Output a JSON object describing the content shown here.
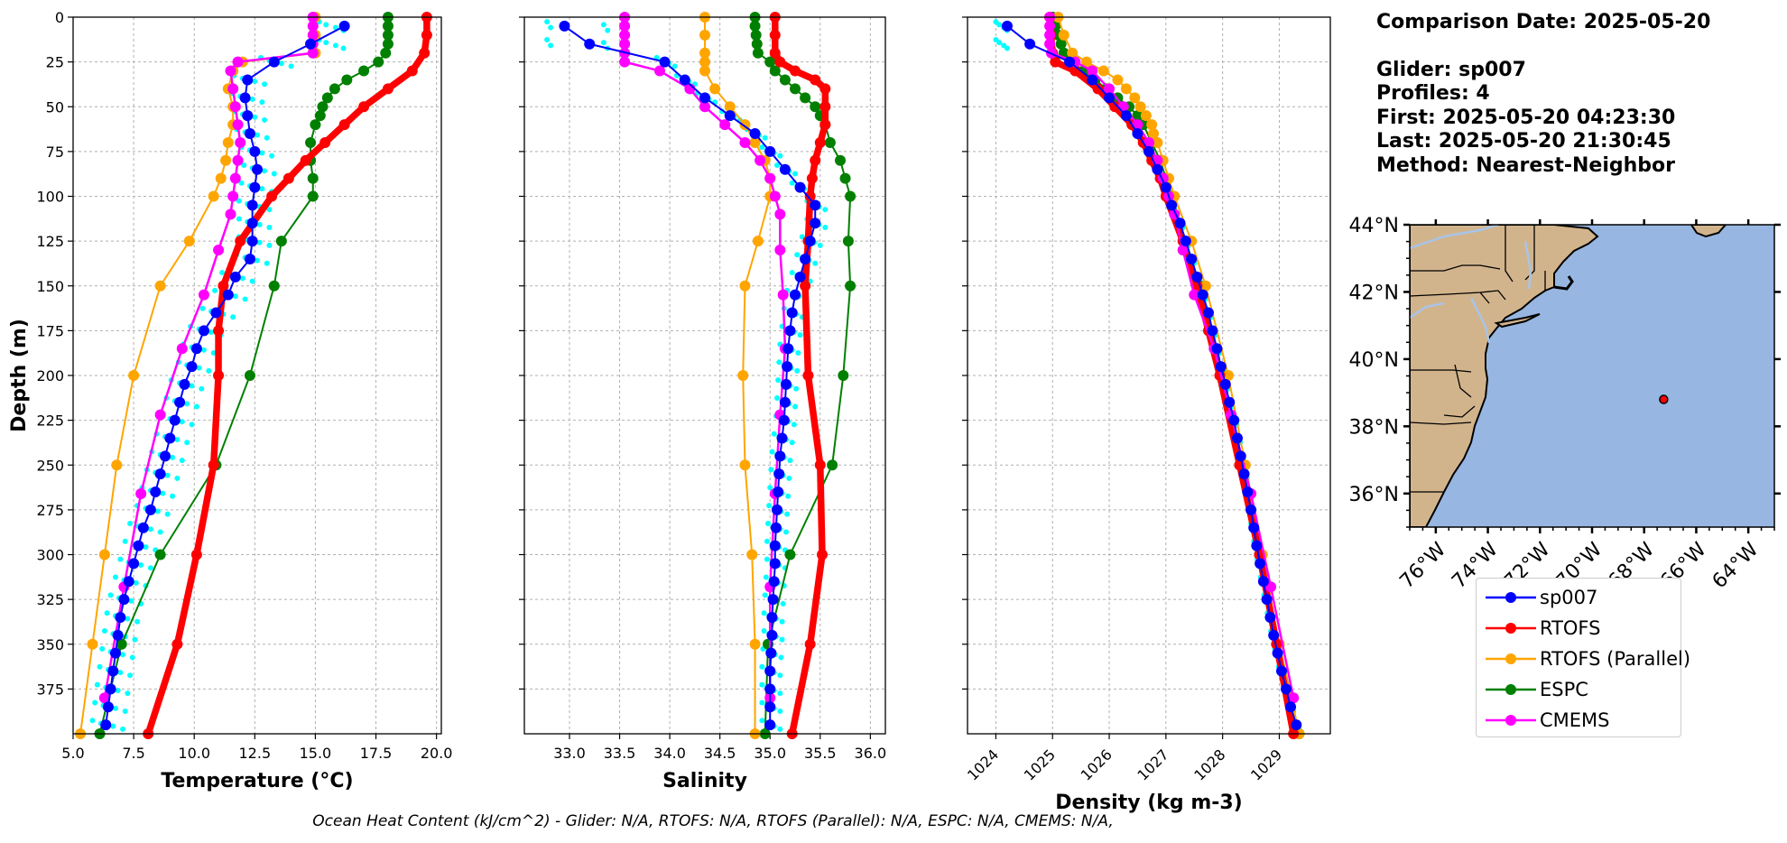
{
  "info": {
    "comparison_date": "Comparison Date: 2025-05-20",
    "glider": "Glider: sp007",
    "profiles": "Profiles: 4",
    "first": "First: 2025-05-20 04:23:30",
    "last": "Last: 2025-05-20 21:30:45",
    "method": "Method: Nearest-Neighbor"
  },
  "footer": "Ocean Heat Content (kJ/cm^2) - Glider: N/A,  RTOFS: N/A,  RTOFS (Parallel): N/A,  ESPC: N/A,  CMEMS: N/A,",
  "colors": {
    "sp007": "#0000ff",
    "RTOFS": "#ff0000",
    "RTOFS (Parallel)": "#ffa500",
    "ESPC": "#008000",
    "CMEMS": "#ff00ff",
    "raw": "#00ffff",
    "land": "#d2b48c",
    "ocean": "#97b6e1",
    "rivers": "#a8c4e8"
  },
  "legend": [
    "sp007",
    "RTOFS",
    "RTOFS (Parallel)",
    "ESPC",
    "CMEMS"
  ],
  "chart_data": [
    {
      "type": "line",
      "xlabel": "Temperature (°C)",
      "ylabel": "Depth (m)",
      "xlim": [
        5.0,
        20.2
      ],
      "ylim": [
        400,
        0
      ],
      "xticks": [
        "5.0",
        "7.5",
        "10.0",
        "12.5",
        "15.0",
        "17.5",
        "20.0"
      ],
      "yticks": [
        "0",
        "25",
        "50",
        "75",
        "100",
        "125",
        "150",
        "175",
        "200",
        "225",
        "250",
        "275",
        "300",
        "325",
        "350",
        "375"
      ],
      "grid": true,
      "series": [
        {
          "name": "sp007",
          "depth": [
            5,
            15,
            25,
            35,
            45,
            55,
            65,
            75,
            85,
            95,
            105,
            115,
            125,
            135,
            145,
            155,
            165,
            175,
            185,
            195,
            205,
            215,
            225,
            235,
            245,
            255,
            265,
            275,
            285,
            295,
            305,
            315,
            325,
            335,
            345,
            355,
            365,
            375,
            385,
            395
          ],
          "values": [
            16.2,
            14.8,
            13.3,
            12.2,
            12.1,
            12.2,
            12.3,
            12.5,
            12.6,
            12.5,
            12.4,
            12.4,
            12.4,
            12.3,
            11.7,
            11.4,
            10.9,
            10.4,
            10.1,
            9.9,
            9.6,
            9.4,
            9.2,
            9.0,
            8.8,
            8.6,
            8.4,
            8.2,
            7.9,
            7.7,
            7.5,
            7.3,
            7.1,
            6.95,
            6.85,
            6.75,
            6.65,
            6.55,
            6.45,
            6.35
          ]
        },
        {
          "name": "RTOFS",
          "depth": [
            0,
            10,
            20,
            30,
            40,
            50,
            60,
            70,
            80,
            90,
            100,
            125,
            150,
            175,
            200,
            250,
            300,
            350,
            400
          ],
          "values": [
            19.6,
            19.6,
            19.5,
            19.0,
            18.0,
            17.0,
            16.2,
            15.4,
            14.6,
            13.9,
            13.2,
            11.9,
            11.2,
            11.0,
            11.0,
            10.8,
            10.1,
            9.3,
            8.1
          ]
        },
        {
          "name": "RTOFS (Parallel)",
          "depth": [
            0,
            10,
            20,
            25,
            30,
            40,
            50,
            60,
            70,
            80,
            90,
            100,
            125,
            150,
            200,
            250,
            300,
            350,
            400
          ],
          "values": [
            15.0,
            15.0,
            15.0,
            12.0,
            11.6,
            11.4,
            11.6,
            11.6,
            11.4,
            11.3,
            11.1,
            10.8,
            9.8,
            8.6,
            7.5,
            6.8,
            6.3,
            5.8,
            5.3
          ]
        },
        {
          "name": "ESPC",
          "depth": [
            0,
            5,
            10,
            15,
            20,
            25,
            30,
            35,
            40,
            45,
            50,
            55,
            60,
            70,
            80,
            90,
            100,
            125,
            150,
            200,
            250,
            300,
            350,
            400
          ],
          "values": [
            18.0,
            18.0,
            18.0,
            18.0,
            17.9,
            17.6,
            17.0,
            16.3,
            15.8,
            15.5,
            15.3,
            15.2,
            15.0,
            14.8,
            14.8,
            14.9,
            14.9,
            13.6,
            13.3,
            12.3,
            10.9,
            8.6,
            7.0,
            6.1
          ]
        },
        {
          "name": "CMEMS",
          "depth": [
            0,
            5,
            10,
            15,
            20,
            25,
            30,
            40,
            50,
            60,
            70,
            80,
            90,
            100,
            110,
            130,
            155,
            185,
            222,
            266,
            318,
            380
          ],
          "values": [
            14.9,
            14.9,
            14.9,
            14.9,
            14.9,
            11.8,
            11.5,
            11.6,
            11.7,
            11.8,
            11.9,
            11.8,
            11.7,
            11.6,
            11.5,
            11.0,
            10.4,
            9.5,
            8.6,
            7.8,
            7.1,
            6.3
          ]
        }
      ]
    },
    {
      "type": "line",
      "xlabel": "Salinity",
      "xlim": [
        32.55,
        36.15
      ],
      "ylim": [
        400,
        0
      ],
      "xticks": [
        "33.0",
        "33.5",
        "34.0",
        "34.5",
        "35.0",
        "35.5",
        "36.0"
      ],
      "grid": true,
      "series": [
        {
          "name": "sp007",
          "depth": [
            5,
            15,
            25,
            35,
            45,
            55,
            65,
            75,
            85,
            95,
            105,
            115,
            125,
            135,
            145,
            155,
            165,
            175,
            185,
            195,
            205,
            215,
            225,
            235,
            245,
            255,
            265,
            275,
            285,
            295,
            305,
            315,
            325,
            335,
            345,
            355,
            365,
            375,
            385,
            395
          ],
          "values": [
            32.95,
            33.2,
            33.95,
            34.15,
            34.35,
            34.6,
            34.85,
            35.0,
            35.15,
            35.3,
            35.45,
            35.45,
            35.4,
            35.35,
            35.3,
            35.25,
            35.22,
            35.2,
            35.18,
            35.17,
            35.16,
            35.15,
            35.14,
            35.12,
            35.1,
            35.09,
            35.08,
            35.07,
            35.06,
            35.05,
            35.05,
            35.04,
            35.03,
            35.02,
            35.02,
            35.01,
            35.0,
            35.0,
            35.0,
            35.0
          ]
        },
        {
          "name": "RTOFS",
          "depth": [
            0,
            10,
            20,
            25,
            30,
            35,
            40,
            50,
            60,
            70,
            80,
            90,
            100,
            125,
            150,
            200,
            250,
            300,
            350,
            400
          ],
          "values": [
            35.05,
            35.05,
            35.05,
            35.1,
            35.25,
            35.45,
            35.55,
            35.55,
            35.55,
            35.5,
            35.45,
            35.42,
            35.4,
            35.38,
            35.35,
            35.38,
            35.5,
            35.52,
            35.4,
            35.22
          ]
        },
        {
          "name": "RTOFS (Parallel)",
          "depth": [
            0,
            10,
            20,
            25,
            30,
            40,
            50,
            60,
            70,
            80,
            90,
            100,
            125,
            150,
            200,
            250,
            300,
            350,
            400
          ],
          "values": [
            34.35,
            34.35,
            34.35,
            34.35,
            34.35,
            34.45,
            34.6,
            34.75,
            34.85,
            34.95,
            35.0,
            35.0,
            34.88,
            34.75,
            34.73,
            34.75,
            34.82,
            34.85,
            34.85
          ]
        },
        {
          "name": "ESPC",
          "depth": [
            0,
            5,
            10,
            15,
            20,
            25,
            30,
            35,
            40,
            45,
            50,
            55,
            60,
            70,
            80,
            90,
            100,
            125,
            150,
            200,
            250,
            300,
            350,
            400
          ],
          "values": [
            34.85,
            34.85,
            34.86,
            34.87,
            34.88,
            35.0,
            35.05,
            35.15,
            35.25,
            35.35,
            35.45,
            35.5,
            35.55,
            35.6,
            35.7,
            35.75,
            35.8,
            35.78,
            35.8,
            35.73,
            35.62,
            35.2,
            34.98,
            34.95
          ]
        },
        {
          "name": "CMEMS",
          "depth": [
            0,
            5,
            10,
            15,
            20,
            25,
            30,
            40,
            50,
            60,
            70,
            80,
            90,
            100,
            110,
            130,
            155,
            185,
            222,
            266,
            318,
            380
          ],
          "values": [
            33.55,
            33.55,
            33.55,
            33.55,
            33.55,
            33.55,
            33.9,
            34.2,
            34.35,
            34.55,
            34.75,
            34.9,
            35.0,
            35.05,
            35.1,
            35.1,
            35.13,
            35.15,
            35.1,
            35.05,
            35.0,
            35.0
          ]
        }
      ]
    },
    {
      "type": "line",
      "xlabel": "Density (kg m-3)",
      "xlim": [
        1023.5,
        1029.9
      ],
      "ylim": [
        400,
        0
      ],
      "xticks": [
        "1024",
        "1025",
        "1026",
        "1027",
        "1028",
        "1029"
      ],
      "grid": true,
      "series": [
        {
          "name": "sp007",
          "depth": [
            5,
            15,
            25,
            35,
            45,
            55,
            65,
            75,
            85,
            95,
            105,
            115,
            125,
            135,
            145,
            155,
            165,
            175,
            185,
            195,
            205,
            215,
            225,
            235,
            245,
            255,
            265,
            275,
            285,
            295,
            305,
            315,
            325,
            335,
            345,
            355,
            365,
            375,
            385,
            395
          ],
          "values": [
            1024.2,
            1024.6,
            1025.3,
            1025.7,
            1026.0,
            1026.3,
            1026.5,
            1026.7,
            1026.85,
            1027.0,
            1027.1,
            1027.25,
            1027.35,
            1027.45,
            1027.55,
            1027.65,
            1027.75,
            1027.82,
            1027.9,
            1027.97,
            1028.05,
            1028.12,
            1028.2,
            1028.26,
            1028.32,
            1028.38,
            1028.44,
            1028.5,
            1028.55,
            1028.6,
            1028.66,
            1028.72,
            1028.78,
            1028.84,
            1028.9,
            1028.97,
            1029.04,
            1029.12,
            1029.2,
            1029.3
          ]
        },
        {
          "name": "RTOFS",
          "depth": [
            0,
            10,
            20,
            25,
            30,
            40,
            50,
            60,
            70,
            80,
            90,
            100,
            125,
            150,
            175,
            200,
            250,
            300,
            350,
            400
          ],
          "values": [
            1024.95,
            1024.97,
            1025.0,
            1025.05,
            1025.4,
            1025.8,
            1026.1,
            1026.4,
            1026.6,
            1026.75,
            1026.9,
            1027.0,
            1027.3,
            1027.55,
            1027.75,
            1027.95,
            1028.3,
            1028.65,
            1028.95,
            1029.25
          ]
        },
        {
          "name": "RTOFS (Parallel)",
          "depth": [
            0,
            10,
            20,
            25,
            30,
            35,
            40,
            45,
            50,
            55,
            60,
            65,
            70,
            80,
            90,
            100,
            125,
            150,
            200,
            250,
            300,
            350,
            400
          ],
          "values": [
            1025.1,
            1025.2,
            1025.35,
            1025.6,
            1025.9,
            1026.15,
            1026.3,
            1026.45,
            1026.55,
            1026.65,
            1026.75,
            1026.78,
            1026.85,
            1026.95,
            1027.05,
            1027.15,
            1027.45,
            1027.7,
            1028.1,
            1028.4,
            1028.7,
            1029.0,
            1029.35
          ]
        },
        {
          "name": "ESPC",
          "depth": [
            0,
            5,
            10,
            15,
            20,
            25,
            30,
            35,
            40,
            45,
            50,
            55,
            60,
            70,
            80,
            90,
            100,
            125,
            150,
            200,
            250,
            300,
            350,
            400
          ],
          "values": [
            1025.0,
            1025.05,
            1025.1,
            1025.15,
            1025.2,
            1025.35,
            1025.55,
            1025.75,
            1025.95,
            1026.15,
            1026.35,
            1026.5,
            1026.6,
            1026.75,
            1026.9,
            1027.0,
            1027.1,
            1027.35,
            1027.6,
            1028.0,
            1028.3,
            1028.65,
            1029.0,
            1029.35
          ]
        },
        {
          "name": "CMEMS",
          "depth": [
            0,
            5,
            10,
            15,
            20,
            25,
            30,
            40,
            50,
            60,
            70,
            80,
            90,
            100,
            110,
            130,
            155,
            185,
            222,
            266,
            318,
            380
          ],
          "values": [
            1024.95,
            1024.95,
            1024.95,
            1024.95,
            1024.98,
            1025.4,
            1025.7,
            1026.0,
            1026.25,
            1026.5,
            1026.7,
            1026.85,
            1026.95,
            1027.05,
            1027.15,
            1027.3,
            1027.5,
            1027.85,
            1028.15,
            1028.5,
            1028.85,
            1029.25
          ]
        }
      ]
    },
    {
      "type": "map",
      "lon_ticks": [
        "76°W",
        "74°W",
        "72°W",
        "70°W",
        "68°W",
        "66°W",
        "64°W"
      ],
      "lat_ticks": [
        "44°N",
        "42°N",
        "40°N",
        "38°N",
        "36°N"
      ],
      "lon_range": [
        -77.0,
        -63.0
      ],
      "lat_range": [
        35.0,
        44.0
      ],
      "glider_position": {
        "lon": -67.25,
        "lat": 38.8
      }
    }
  ]
}
